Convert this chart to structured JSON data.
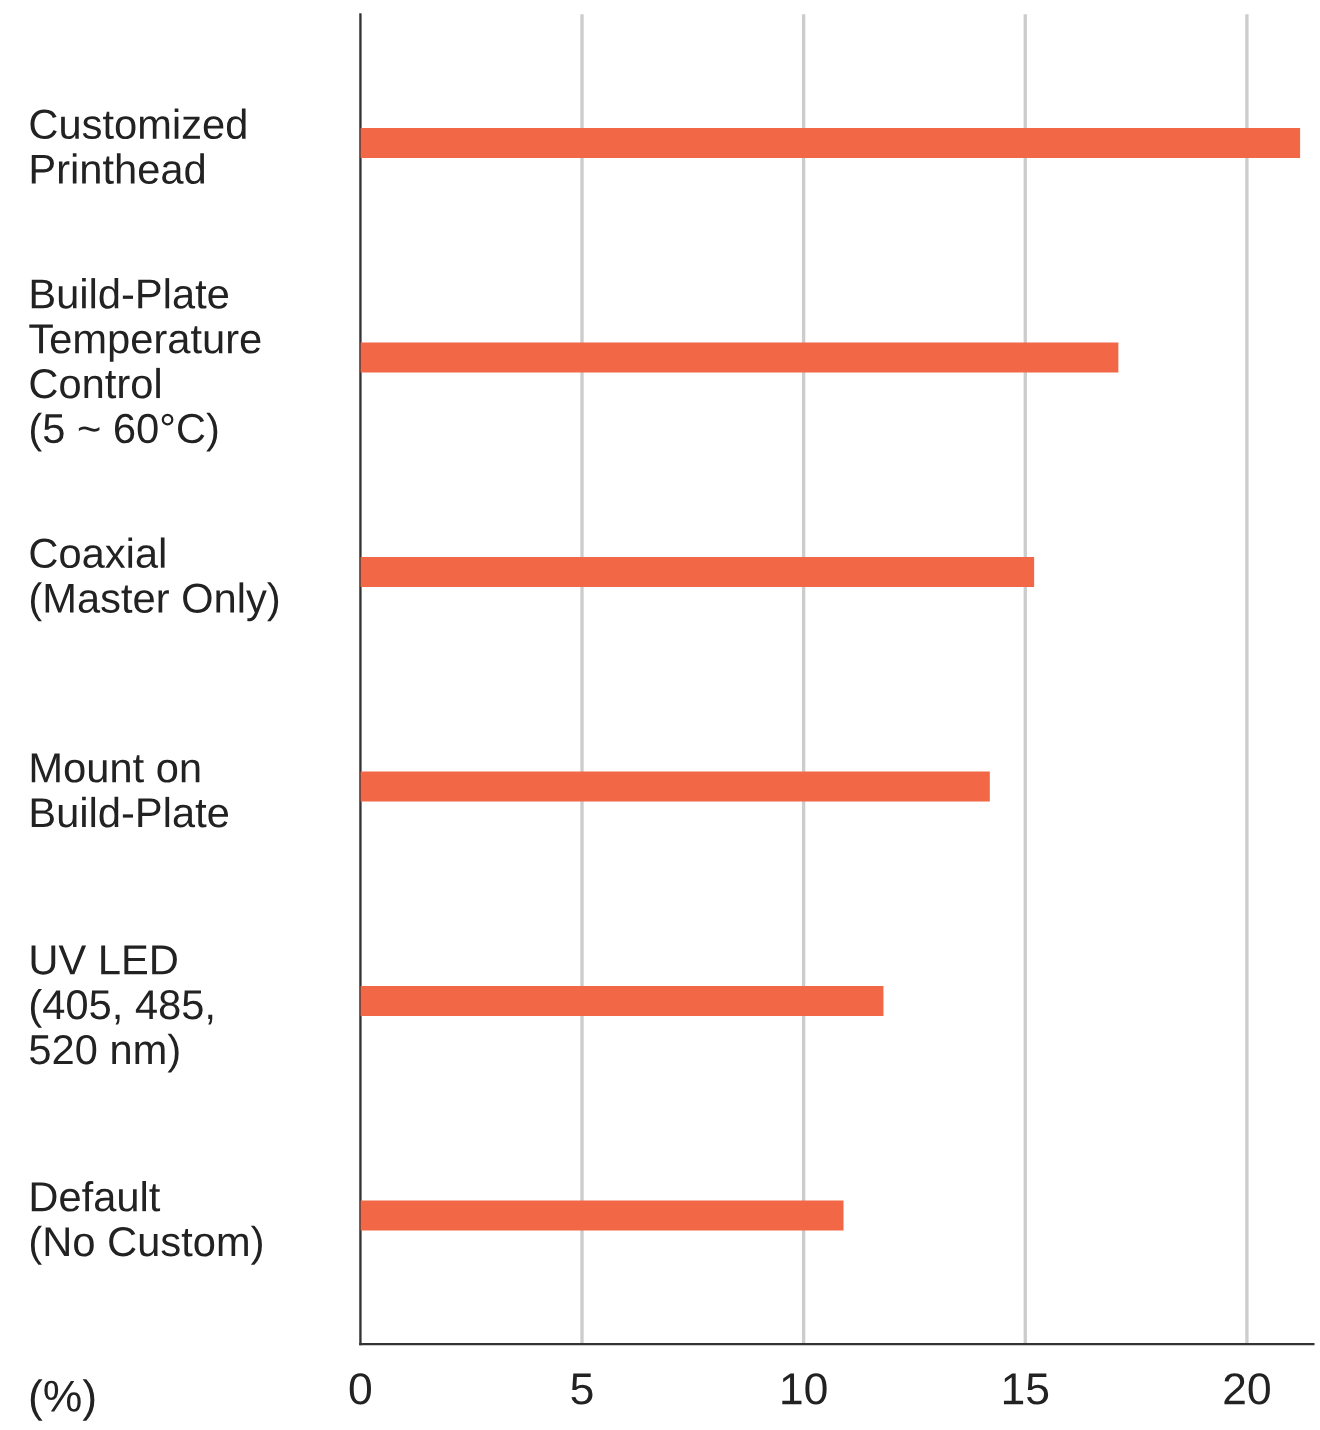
{
  "chart_data": {
    "type": "bar",
    "orientation": "horizontal",
    "xlabel": "(%)",
    "categories": [
      "Customized\nPrinthead",
      "Build-Plate\nTemperature\nControl\n(5 ~ 60°C)",
      "Coaxial\n(Master Only)",
      "Mount on\nBuild-Plate",
      "UV LED\n(405, 485,\n520 nm)",
      "Default\n(No Custom)"
    ],
    "values": [
      21.2,
      17.1,
      15.2,
      14.2,
      11.8,
      10.9
    ],
    "color": "#f26746",
    "xlim": [
      0,
      21.5
    ],
    "xticks": [
      0,
      5,
      10,
      15,
      20
    ],
    "grid": "x",
    "legend": false
  }
}
